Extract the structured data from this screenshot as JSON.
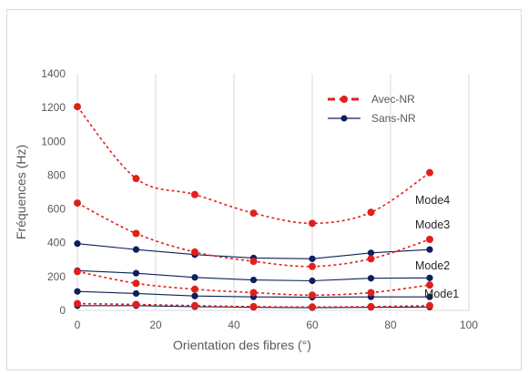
{
  "chart_data": {
    "type": "line",
    "xlabel": "Orientation  des fibres (°)",
    "ylabel": "Fréquences (Hz)",
    "xlim": [
      0,
      100
    ],
    "ylim": [
      0,
      1400
    ],
    "xticks": [
      0,
      20,
      40,
      60,
      80,
      100
    ],
    "yticks": [
      0,
      200,
      400,
      600,
      800,
      1000,
      1200,
      1400
    ],
    "grid": "vertical",
    "legend_position": "top-right",
    "x": [
      0,
      15,
      30,
      45,
      60,
      75,
      90
    ],
    "series": [
      {
        "name": "Avec-NR",
        "group": "Avec-NR",
        "mode": "Mode1",
        "color": "#e0201b",
        "style": "dashed",
        "values": [
          40,
          35,
          28,
          22,
          20,
          22,
          28
        ]
      },
      {
        "name": "Avec-NR",
        "group": "Avec-NR",
        "mode": "Mode2",
        "color": "#e0201b",
        "style": "dashed",
        "values": [
          230,
          160,
          125,
          105,
          90,
          105,
          150
        ]
      },
      {
        "name": "Avec-NR",
        "group": "Avec-NR",
        "mode": "Mode3",
        "color": "#e0201b",
        "style": "dashed",
        "values": [
          635,
          455,
          345,
          290,
          260,
          305,
          420
        ]
      },
      {
        "name": "Avec-NR",
        "group": "Avec-NR",
        "mode": "Mode4",
        "color": "#e0201b",
        "style": "dashed",
        "values": [
          1205,
          780,
          685,
          575,
          515,
          580,
          815
        ]
      },
      {
        "name": "Sans-NR",
        "group": "Sans-NR",
        "mode": "Mode1",
        "color": "#0d1f5c",
        "style": "solid",
        "values": [
          28,
          28,
          22,
          18,
          16,
          18,
          20
        ]
      },
      {
        "name": "Sans-NR",
        "group": "Sans-NR",
        "mode": "Mode2",
        "color": "#0d1f5c",
        "style": "solid",
        "values": [
          112,
          100,
          85,
          80,
          78,
          80,
          80
        ]
      },
      {
        "name": "Sans-NR",
        "group": "Sans-NR",
        "mode": "Mode3",
        "color": "#0d1f5c",
        "style": "solid",
        "values": [
          235,
          220,
          195,
          180,
          175,
          190,
          192
        ]
      },
      {
        "name": "Sans-NR",
        "group": "Sans-NR",
        "mode": "Mode4",
        "color": "#0d1f5c",
        "style": "solid",
        "values": [
          395,
          360,
          330,
          310,
          305,
          340,
          360
        ]
      }
    ],
    "legend": [
      {
        "label": "Avec-NR",
        "color": "#e0201b",
        "style": "dashed"
      },
      {
        "label": "Sans-NR",
        "color": "#0d1f5c",
        "style": "solid"
      }
    ],
    "annotations": [
      "Mode4",
      "Mode3",
      "Mode2",
      "Mode1"
    ]
  }
}
